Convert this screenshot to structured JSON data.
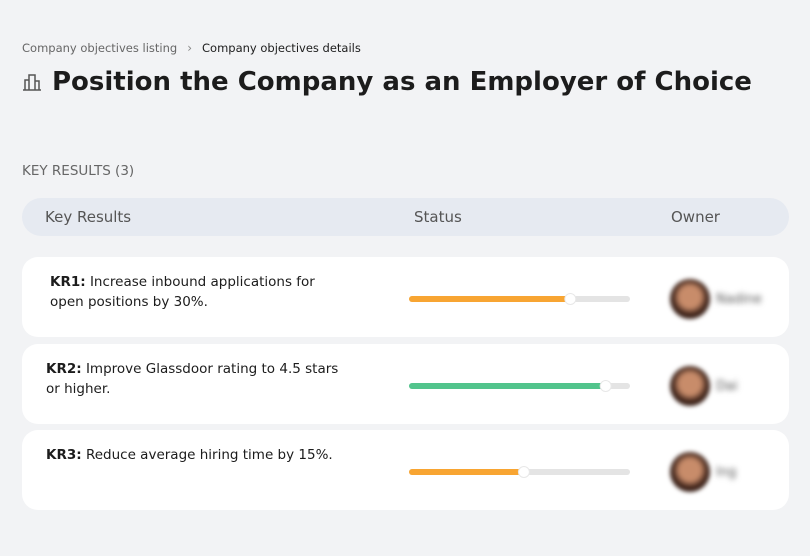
{
  "breadcrumb": {
    "items": [
      "Company objectives listing",
      "Company objectives details"
    ]
  },
  "header": {
    "title": "Position the Company as an Employer of Choice"
  },
  "section": {
    "title": "KEY RESULTS (3)"
  },
  "table": {
    "columns": [
      "Key Results",
      "Status",
      "Owner"
    ],
    "rows": [
      {
        "label": "KR1:",
        "text": "Increase inbound applications for open positions by 30%.",
        "progress": 73,
        "color": "#f8a532",
        "owner": "Nadine"
      },
      {
        "label": "KR2:",
        "text": "Improve Glassdoor rating to 4.5 stars or higher.",
        "progress": 89,
        "color": "#52c48c",
        "owner": "Dai"
      },
      {
        "label": "KR3:",
        "text": "Reduce average hiring time by 15%.",
        "progress": 52,
        "color": "#f8a532",
        "owner": "Ing"
      }
    ]
  }
}
